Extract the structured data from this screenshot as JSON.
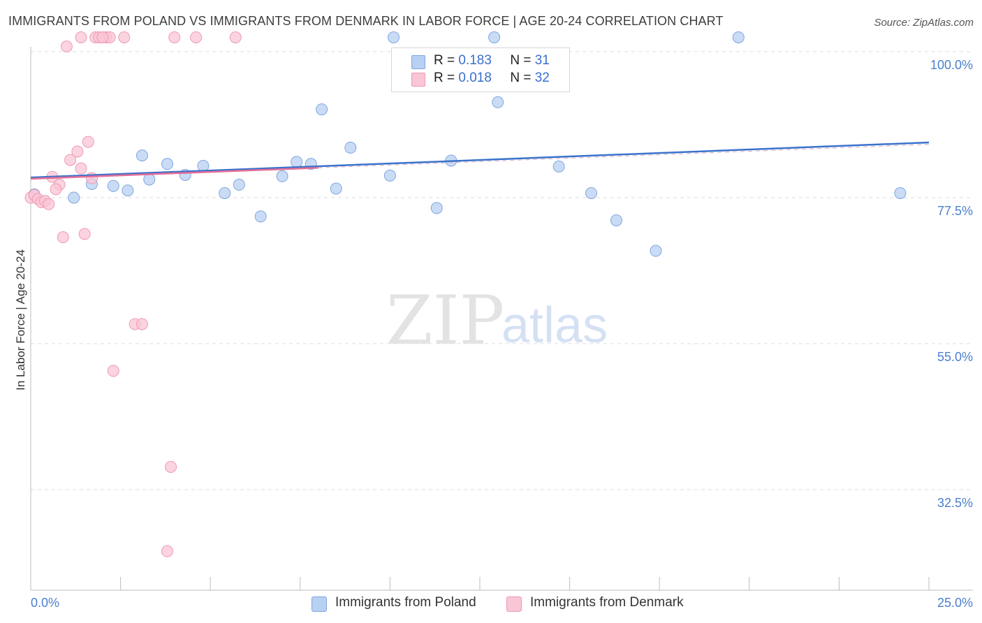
{
  "header": {
    "title": "IMMIGRANTS FROM POLAND VS IMMIGRANTS FROM DENMARK IN LABOR FORCE | AGE 20-24 CORRELATION CHART",
    "source": "Source: ZipAtlas.com"
  },
  "watermark": {
    "zip": "ZIP",
    "atlas": "atlas"
  },
  "legend": {
    "poland": {
      "r_label": "R =",
      "r_value": "0.183",
      "n_label": "N =",
      "n_value": "31"
    },
    "denmark": {
      "r_label": "R =",
      "r_value": "0.018",
      "n_label": "N =",
      "n_value": "32"
    }
  },
  "colors": {
    "poland_fill": "#b8d0f2",
    "poland_stroke": "#7fa6e0",
    "poland_line": "#3a72cc",
    "denmark_fill": "#f9c6d5",
    "denmark_stroke": "#ee9ab4",
    "denmark_line": "#e46f97",
    "axis_text": "#4a7fcf",
    "grid": "#dcdcdc"
  },
  "chart_data": {
    "type": "scatter",
    "title": "IMMIGRANTS FROM POLAND VS IMMIGRANTS FROM DENMARK IN LABOR FORCE | AGE 20-24 CORRELATION CHART",
    "xlabel": "",
    "ylabel": "In Labor Force | Age 20-24",
    "xlim": [
      0,
      25
    ],
    "ylim": [
      17,
      101.5
    ],
    "x_tick_labels": [
      "0.0%",
      "25.0%"
    ],
    "y_ticks": [
      {
        "value": 100,
        "label": "100.0%"
      },
      {
        "value": 77.5,
        "label": "77.5%"
      },
      {
        "value": 55,
        "label": "55.0%"
      },
      {
        "value": 32.5,
        "label": "32.5%"
      }
    ],
    "grid": true,
    "legend_position": "top-center",
    "series": [
      {
        "name": "Immigrants from Poland",
        "points": [
          [
            0.1,
            78.0
          ],
          [
            1.2,
            77.5
          ],
          [
            2.3,
            79.3
          ],
          [
            2.7,
            78.6
          ],
          [
            3.3,
            80.3
          ],
          [
            3.8,
            82.7
          ],
          [
            4.3,
            81.0
          ],
          [
            4.8,
            82.4
          ],
          [
            5.4,
            78.2
          ],
          [
            5.8,
            79.5
          ],
          [
            6.4,
            74.6
          ],
          [
            7.0,
            80.8
          ],
          [
            7.4,
            83.0
          ],
          [
            7.8,
            82.7
          ],
          [
            8.1,
            91.1
          ],
          [
            8.5,
            78.9
          ],
          [
            8.9,
            85.2
          ],
          [
            10.0,
            80.9
          ],
          [
            10.1,
            102.2
          ],
          [
            11.3,
            75.9
          ],
          [
            11.7,
            83.2
          ],
          [
            12.9,
            102.2
          ],
          [
            13.0,
            92.2
          ],
          [
            14.7,
            82.3
          ],
          [
            15.6,
            78.2
          ],
          [
            16.3,
            74.0
          ],
          [
            17.4,
            69.3
          ],
          [
            19.7,
            102.2
          ],
          [
            24.2,
            78.2
          ],
          [
            1.7,
            79.6
          ],
          [
            3.1,
            84.0
          ]
        ],
        "trend": {
          "x": [
            0,
            25
          ],
          "y": [
            80.6,
            86.0
          ]
        }
      },
      {
        "name": "Immigrants from Denmark",
        "points": [
          [
            0.0,
            77.5
          ],
          [
            0.1,
            77.9
          ],
          [
            0.2,
            77.3
          ],
          [
            0.3,
            76.8
          ],
          [
            0.4,
            77.0
          ],
          [
            0.5,
            76.5
          ],
          [
            0.6,
            80.7
          ],
          [
            0.8,
            79.5
          ],
          [
            0.9,
            71.4
          ],
          [
            1.0,
            100.8
          ],
          [
            1.1,
            83.3
          ],
          [
            1.3,
            84.6
          ],
          [
            1.4,
            102.2
          ],
          [
            1.5,
            71.9
          ],
          [
            1.7,
            80.5
          ],
          [
            1.6,
            86.1
          ],
          [
            1.8,
            102.2
          ],
          [
            2.1,
            102.2
          ],
          [
            2.2,
            102.2
          ],
          [
            2.3,
            50.8
          ],
          [
            2.6,
            102.2
          ],
          [
            2.9,
            58.0
          ],
          [
            3.1,
            58.0
          ],
          [
            3.8,
            23.0
          ],
          [
            3.9,
            36.0
          ],
          [
            4.0,
            102.2
          ],
          [
            4.6,
            102.2
          ],
          [
            5.7,
            102.2
          ],
          [
            1.4,
            82.0
          ],
          [
            0.7,
            78.8
          ],
          [
            1.9,
            102.2
          ],
          [
            2.0,
            102.2
          ]
        ],
        "trend": {
          "x": [
            0,
            8
          ],
          "y": [
            80.4,
            82.1
          ]
        }
      }
    ]
  },
  "bottom_legend": {
    "poland_label": "Immigrants from Poland",
    "denmark_label": "Immigrants from Denmark"
  }
}
